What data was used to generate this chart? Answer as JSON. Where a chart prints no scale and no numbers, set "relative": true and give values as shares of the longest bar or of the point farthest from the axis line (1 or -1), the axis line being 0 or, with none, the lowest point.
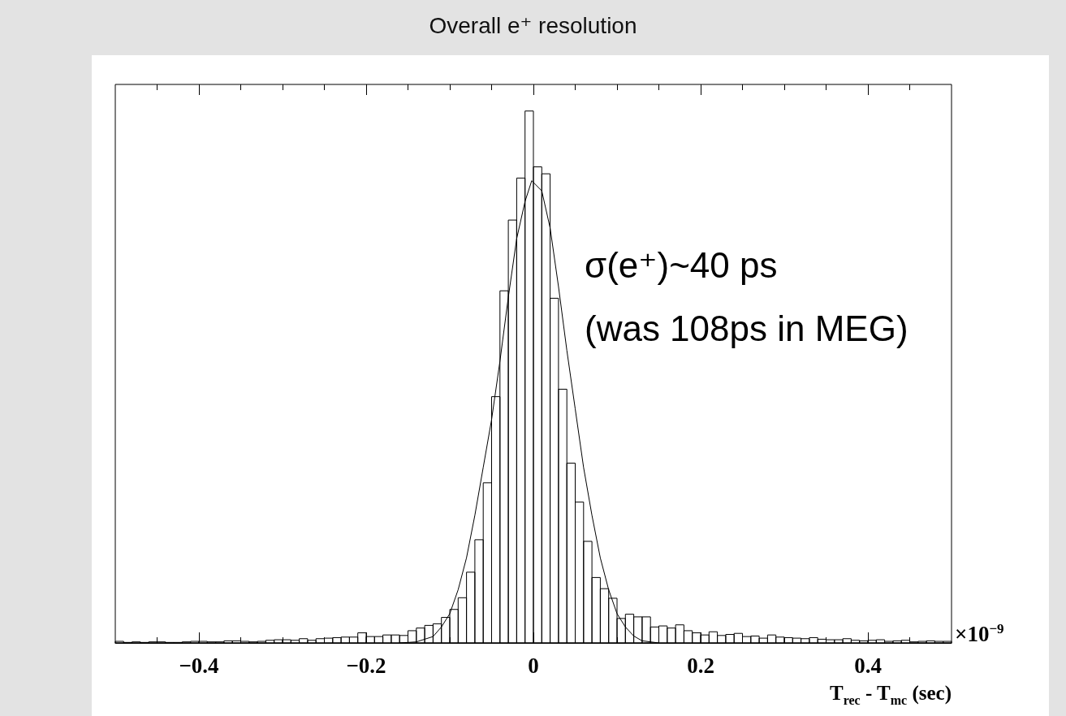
{
  "chart_data": {
    "type": "histogram",
    "title": "Overall e⁺ resolution",
    "xlabel": "T$_{rec}$ - T$_{mc}$ (sec)",
    "relative": true,
    "grid": false,
    "annotations": [
      "σ(e⁺)~40 ps",
      "(was 108ps in MEG)",
      "×10$^{−9}$"
    ],
    "xlim": [
      -0.5,
      0.5
    ],
    "xticks": [
      {
        "value": -0.45,
        "label": null
      },
      {
        "value": -0.4,
        "label": "−0.4"
      },
      {
        "value": -0.35,
        "label": null
      },
      {
        "value": -0.3,
        "label": null
      },
      {
        "value": -0.25,
        "label": null
      },
      {
        "value": -0.2,
        "label": "−0.2"
      },
      {
        "value": -0.15,
        "label": null
      },
      {
        "value": -0.1,
        "label": null
      },
      {
        "value": -0.05,
        "label": null
      },
      0,
      {
        "value": 0.05,
        "label": null
      },
      {
        "value": 0.1,
        "label": null
      },
      {
        "value": 0.15,
        "label": null
      },
      0.2,
      {
        "value": 0.25,
        "label": null
      },
      {
        "value": 0.3,
        "label": null
      },
      {
        "value": 0.35,
        "label": null
      },
      0.4,
      {
        "value": 0.45,
        "label": null
      }
    ],
    "series": [
      {
        "type": "histogram",
        "color": "#000000",
        "bins": [
          -0.5,
          -0.49,
          -0.48,
          -0.47,
          -0.46,
          -0.45,
          -0.44,
          -0.43,
          -0.42,
          -0.41,
          -0.4,
          -0.39,
          -0.38,
          -0.37,
          -0.36,
          -0.35,
          -0.34,
          -0.33,
          -0.32,
          -0.31,
          -0.3,
          -0.29,
          -0.28,
          -0.27,
          -0.26,
          -0.25,
          -0.24,
          -0.23,
          -0.22,
          -0.21,
          -0.2,
          -0.19,
          -0.18,
          -0.17,
          -0.16,
          -0.15,
          -0.14,
          -0.13,
          -0.12,
          -0.11,
          -0.1,
          -0.09,
          -0.08,
          -0.07,
          -0.06,
          -0.05,
          -0.04,
          -0.03,
          -0.02,
          -0.01,
          0,
          0.01,
          0.02,
          0.03,
          0.04,
          0.05,
          0.06,
          0.07,
          0.08,
          0.09,
          0.1,
          0.11,
          0.12,
          0.13,
          0.14,
          0.15,
          0.16,
          0.17,
          0.18,
          0.19,
          0.2,
          0.21,
          0.22,
          0.23,
          0.24,
          0.25,
          0.26,
          0.27,
          0.28,
          0.29,
          0.3,
          0.31,
          0.32,
          0.33,
          0.34,
          0.35,
          0.36,
          0.37,
          0.38,
          0.39,
          0.4,
          0.41,
          0.42,
          0.43,
          0.44,
          0.45,
          0.46,
          0.47,
          0.48,
          0.49,
          0.5
        ],
        "values": [
          0.003,
          0.001,
          0.002,
          0.001,
          0.002,
          0.002,
          0.001,
          0.001,
          0.002,
          0.003,
          0.003,
          0.002,
          0.002,
          0.004,
          0.004,
          0.003,
          0.002,
          0.003,
          0.005,
          0.006,
          0.006,
          0.005,
          0.008,
          0.005,
          0.008,
          0.009,
          0.01,
          0.011,
          0.011,
          0.019,
          0.012,
          0.012,
          0.015,
          0.015,
          0.014,
          0.023,
          0.028,
          0.033,
          0.036,
          0.048,
          0.063,
          0.085,
          0.133,
          0.194,
          0.301,
          0.463,
          0.662,
          0.795,
          0.874,
          1.0,
          0.895,
          0.882,
          0.648,
          0.477,
          0.338,
          0.265,
          0.191,
          0.123,
          0.102,
          0.084,
          0.046,
          0.054,
          0.049,
          0.049,
          0.03,
          0.032,
          0.028,
          0.034,
          0.023,
          0.019,
          0.015,
          0.021,
          0.014,
          0.016,
          0.018,
          0.012,
          0.013,
          0.009,
          0.015,
          0.011,
          0.01,
          0.009,
          0.008,
          0.01,
          0.007,
          0.006,
          0.006,
          0.008,
          0.005,
          0.004,
          0.005,
          0.006,
          0.003,
          0.004,
          0.005,
          0.002,
          0.003,
          0.004,
          0.003,
          0.003
        ]
      },
      {
        "type": "line",
        "color": "#000000",
        "marker": "none",
        "line_style": "solid",
        "x": [
          -0.16,
          -0.14,
          -0.12,
          -0.11,
          -0.1,
          -0.09,
          -0.08,
          -0.07,
          -0.06,
          -0.05,
          -0.04,
          -0.03,
          -0.02,
          -0.01,
          -0.002,
          0.01,
          0.02,
          0.03,
          0.04,
          0.05,
          0.06,
          0.07,
          0.08,
          0.09,
          0.1,
          0.11,
          0.12,
          0.13,
          0.15
        ],
        "values": [
          0,
          0.002,
          0.012,
          0.03,
          0.055,
          0.1,
          0.16,
          0.24,
          0.33,
          0.42,
          0.53,
          0.65,
          0.76,
          0.83,
          0.869,
          0.85,
          0.78,
          0.67,
          0.55,
          0.44,
          0.33,
          0.24,
          0.16,
          0.1,
          0.055,
          0.03,
          0.013,
          0.004,
          0
        ]
      }
    ]
  }
}
